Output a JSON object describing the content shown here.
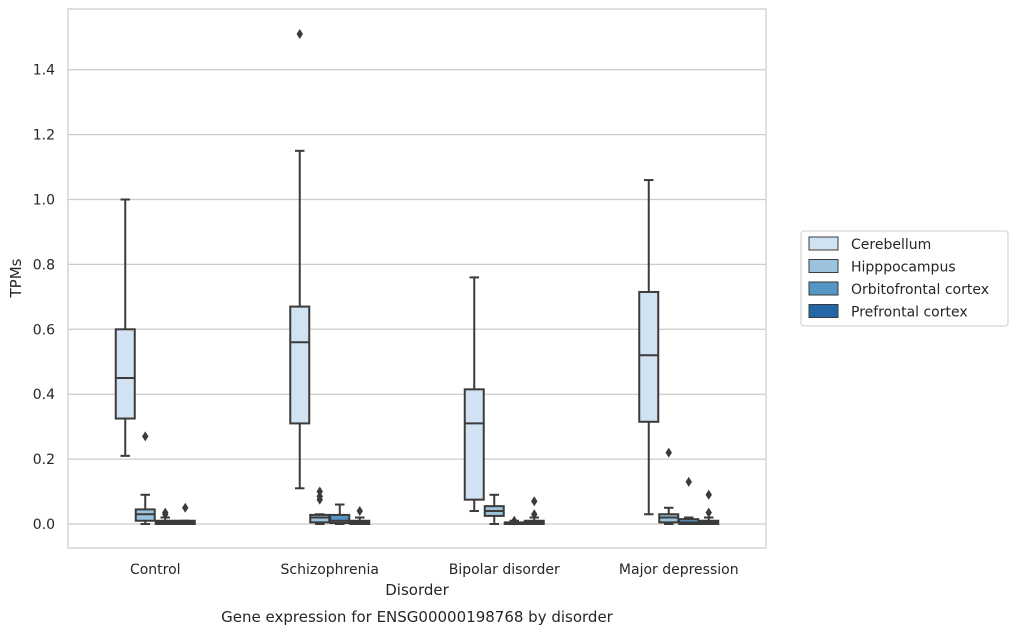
{
  "chart_data": {
    "type": "box",
    "title": "Gene expression for ENSG00000198768 by disorder",
    "xlabel": "Disorder",
    "ylabel": "TPMs",
    "categories": [
      "Control",
      "Schizophrenia",
      "Bipolar disorder",
      "Major depression"
    ],
    "ylim": [
      -0.075,
      1.56
    ],
    "yticks": [
      "0.0",
      "0.2",
      "0.4",
      "0.6",
      "0.8",
      "1.0",
      "1.2",
      "1.4"
    ],
    "grid": "y",
    "legend_position": "right",
    "series": [
      {
        "name": "Cerebellum",
        "color": "#d1e2f2",
        "boxes": [
          {
            "whisker_low": 0.21,
            "q1": 0.325,
            "median": 0.45,
            "q3": 0.6,
            "whisker_high": 1.0,
            "outliers": []
          },
          {
            "whisker_low": 0.11,
            "q1": 0.31,
            "median": 0.56,
            "q3": 0.67,
            "whisker_high": 1.15,
            "outliers": [
              1.51
            ]
          },
          {
            "whisker_low": 0.04,
            "q1": 0.075,
            "median": 0.31,
            "q3": 0.415,
            "whisker_high": 0.76,
            "outliers": []
          },
          {
            "whisker_low": 0.03,
            "q1": 0.315,
            "median": 0.52,
            "q3": 0.715,
            "whisker_high": 1.06,
            "outliers": []
          }
        ]
      },
      {
        "name": "Hipppocampus",
        "color": "#9cc3dd",
        "boxes": [
          {
            "whisker_low": 0.0,
            "q1": 0.01,
            "median": 0.03,
            "q3": 0.045,
            "whisker_high": 0.09,
            "outliers": [
              0.27
            ]
          },
          {
            "whisker_low": 0.0,
            "q1": 0.005,
            "median": 0.02,
            "q3": 0.028,
            "whisker_high": 0.03,
            "outliers": [
              0.075,
              0.085,
              0.1
            ]
          },
          {
            "whisker_low": 0.0,
            "q1": 0.025,
            "median": 0.04,
            "q3": 0.055,
            "whisker_high": 0.09,
            "outliers": []
          },
          {
            "whisker_low": 0.0,
            "q1": 0.005,
            "median": 0.02,
            "q3": 0.03,
            "whisker_high": 0.05,
            "outliers": [
              0.22
            ]
          }
        ]
      },
      {
        "name": "Orbitofrontal cortex",
        "color": "#5596c6",
        "boxes": [
          {
            "whisker_low": 0.0,
            "q1": 0.0,
            "median": 0.005,
            "q3": 0.01,
            "whisker_high": 0.02,
            "outliers": [
              0.03,
              0.035
            ]
          },
          {
            "whisker_low": 0.0,
            "q1": 0.003,
            "median": 0.01,
            "q3": 0.028,
            "whisker_high": 0.06,
            "outliers": []
          },
          {
            "whisker_low": 0.0,
            "q1": 0.0,
            "median": 0.002,
            "q3": 0.005,
            "whisker_high": 0.01,
            "outliers": [
              0.01
            ]
          },
          {
            "whisker_low": 0.0,
            "q1": 0.0,
            "median": 0.005,
            "q3": 0.015,
            "whisker_high": 0.02,
            "outliers": [
              0.13
            ]
          }
        ]
      },
      {
        "name": "Prefrontal cortex",
        "color": "#2367a8",
        "boxes": [
          {
            "whisker_low": 0.0,
            "q1": 0.0,
            "median": 0.005,
            "q3": 0.01,
            "whisker_high": 0.01,
            "outliers": [
              0.05
            ]
          },
          {
            "whisker_low": 0.0,
            "q1": 0.0,
            "median": 0.005,
            "q3": 0.01,
            "whisker_high": 0.02,
            "outliers": [
              0.04
            ]
          },
          {
            "whisker_low": 0.0,
            "q1": 0.0,
            "median": 0.005,
            "q3": 0.01,
            "whisker_high": 0.02,
            "outliers": [
              0.03,
              0.07
            ]
          },
          {
            "whisker_low": 0.0,
            "q1": 0.0,
            "median": 0.005,
            "q3": 0.01,
            "whisker_high": 0.02,
            "outliers": [
              0.035,
              0.09
            ]
          }
        ]
      }
    ]
  }
}
